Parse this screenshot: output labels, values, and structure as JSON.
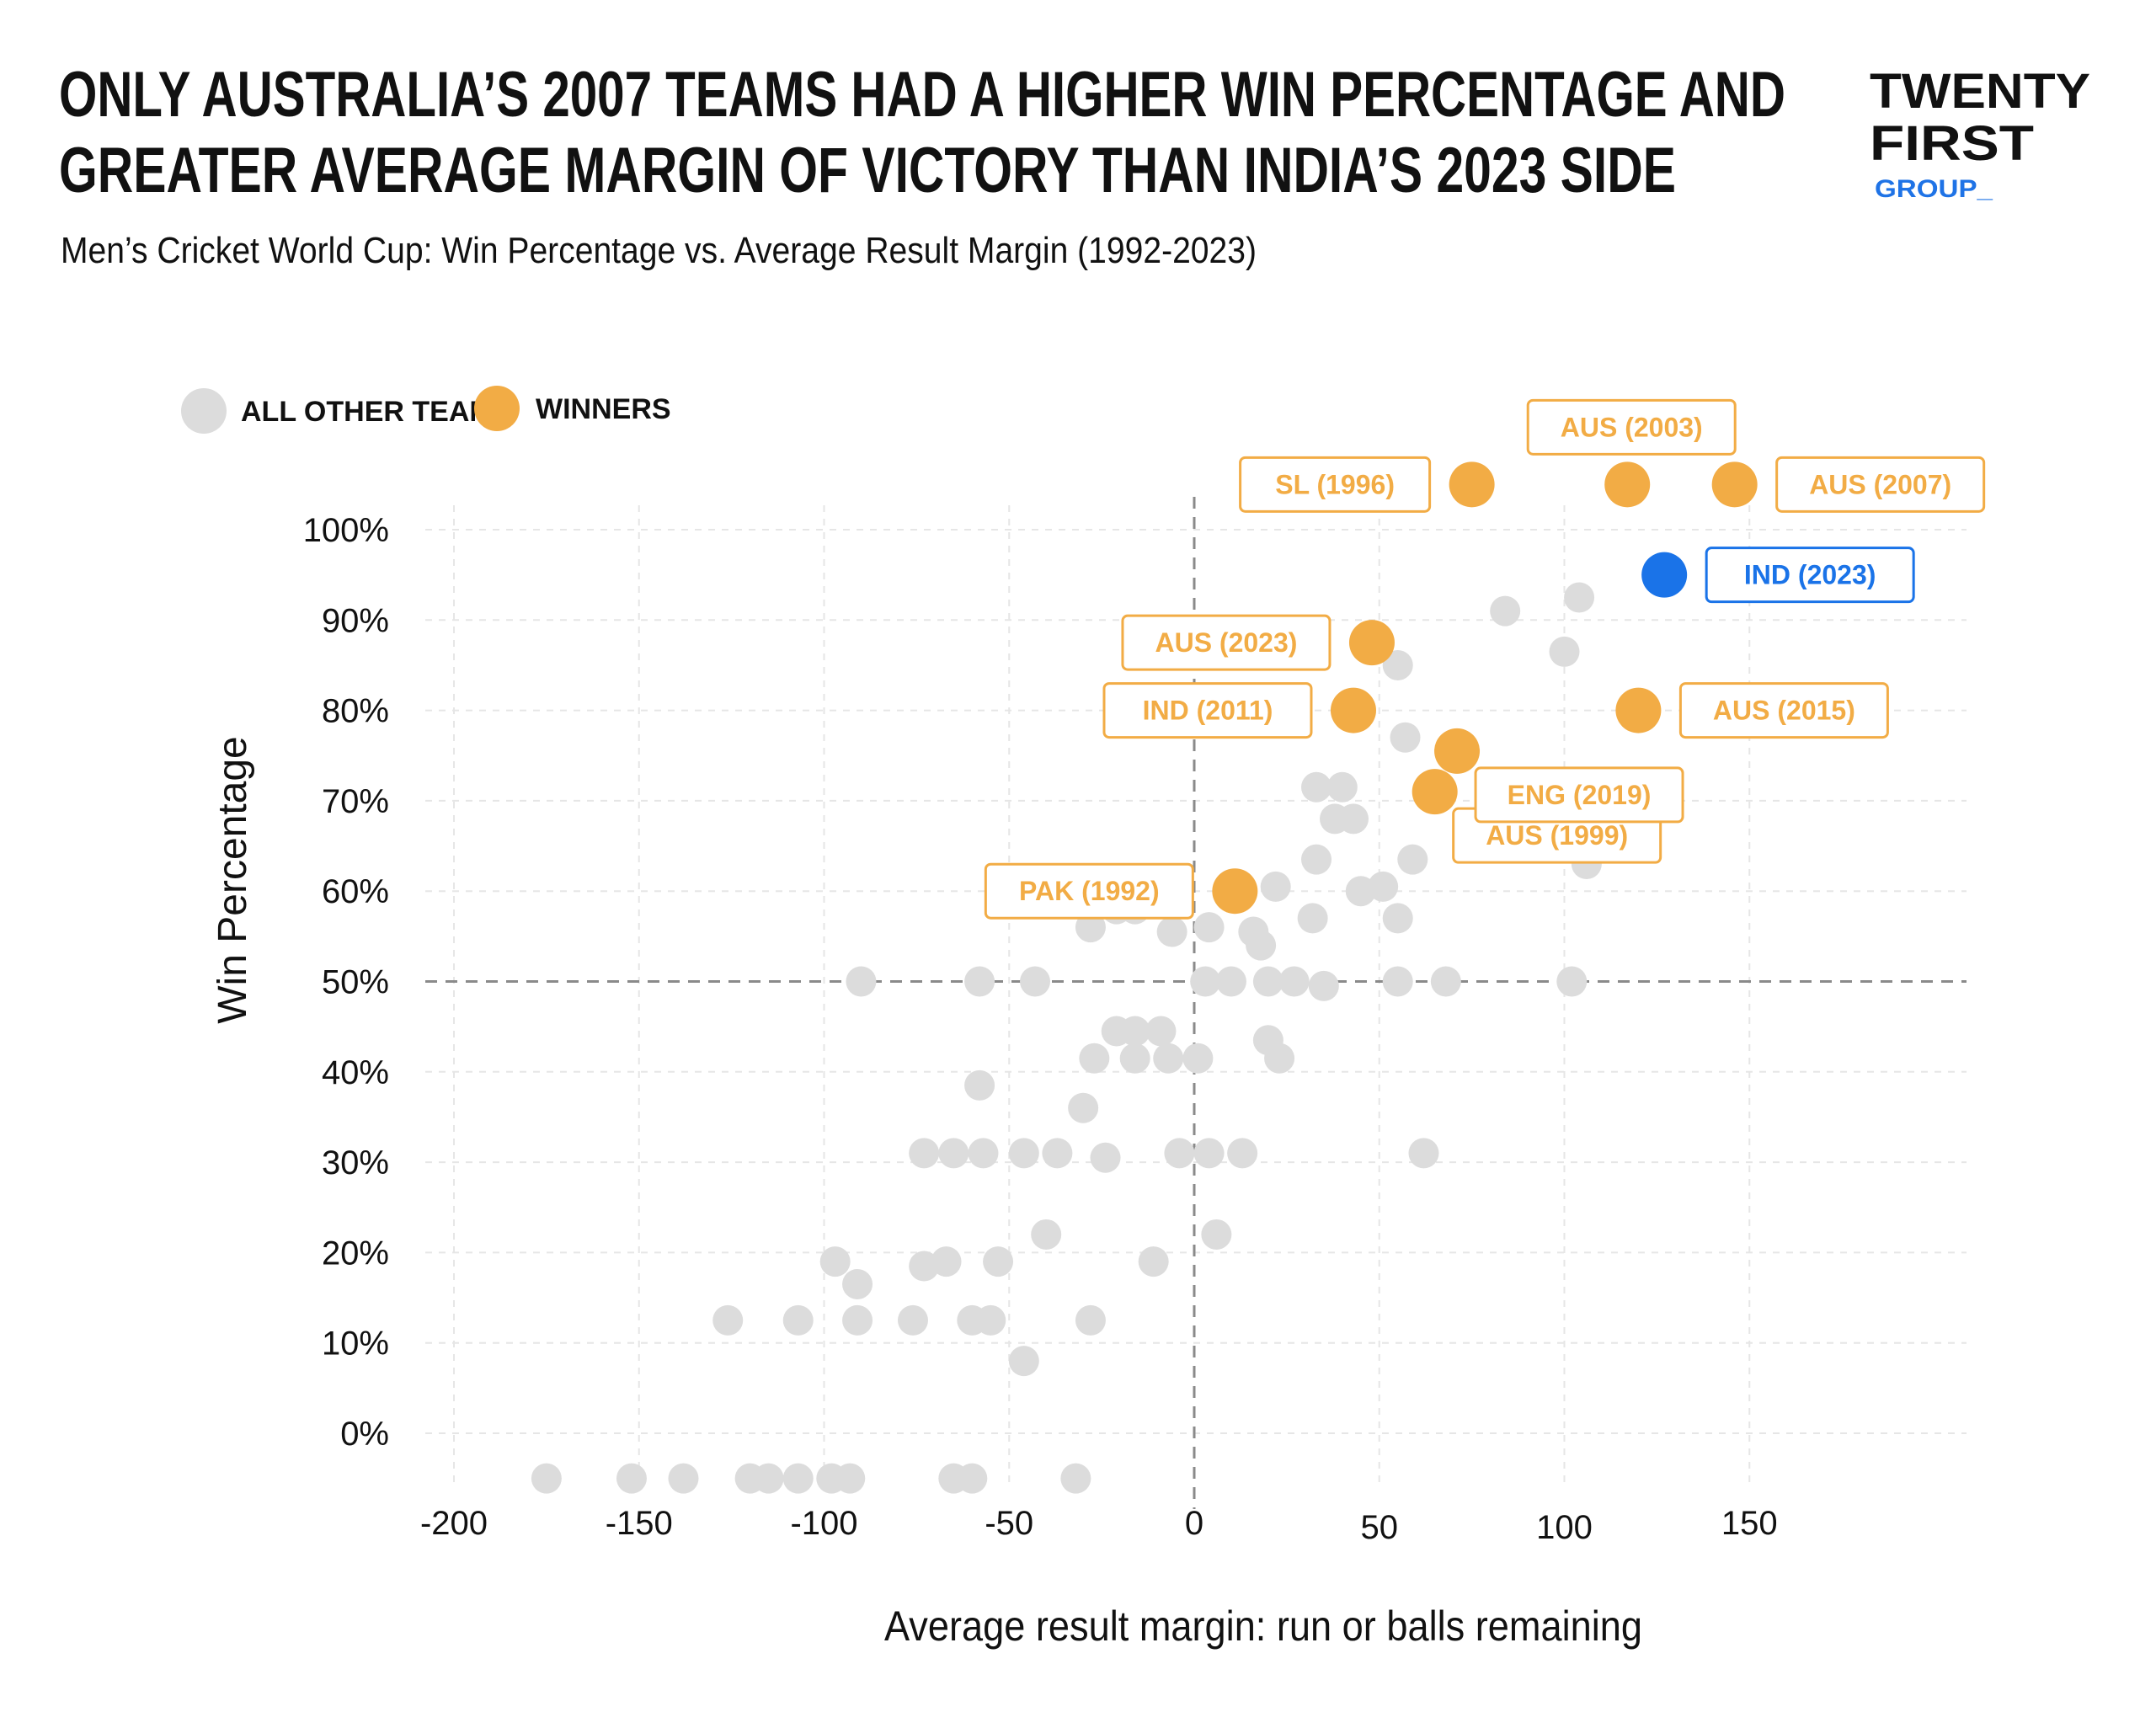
{
  "header": {
    "title_line1": "ONLY AUSTRALIA’S 2007 TEAMS HAD A HIGHER WIN PERCENTAGE AND",
    "title_line2": "GREATER AVERAGE MARGIN OF VICTORY THAN INDIA’S 2023 SIDE",
    "subtitle": "Men’s Cricket World Cup: Win Percentage vs. Average Result Margin (1992-2023)"
  },
  "logo": {
    "line1": "TWENTY",
    "line2": "FIRST",
    "line3": "GROUP_"
  },
  "colors": {
    "other": "#dcdcdc",
    "winner": "#f2ac45",
    "highlight": "#1a73e8",
    "grid": "#e6e6e6",
    "reference": "#8a8a8a"
  },
  "chart_data": {
    "type": "scatter",
    "xlabel": "Average result margin: run or balls remaining",
    "ylabel": "Win Percentage",
    "xlim": [
      -200,
      150
    ],
    "ylim": [
      0,
      100
    ],
    "x_ticks": [
      -200,
      -150,
      -100,
      -50,
      0,
      50,
      100,
      150
    ],
    "x_tick_labels": [
      "-200",
      "-150",
      "-100",
      "-50",
      "0",
      "50",
      "100",
      "150"
    ],
    "y_ticks": [
      0,
      10,
      20,
      30,
      40,
      50,
      60,
      70,
      80,
      90,
      100
    ],
    "y_tick_labels": [
      "0%",
      "10%",
      "20%",
      "30%",
      "40%",
      "50%",
      "60%",
      "70%",
      "80%",
      "90%",
      "100%"
    ],
    "reference_lines": {
      "x": 0,
      "y": 50
    },
    "legend": {
      "placement": "top-left",
      "items": [
        {
          "label": "ALL OTHER TEAMS",
          "color": "#dcdcdc"
        },
        {
          "label": "WINNERS",
          "color": "#f2ac45"
        }
      ]
    },
    "series": [
      {
        "name": "ALL OTHER TEAMS",
        "color": "#dcdcdc",
        "points": [
          {
            "x": -175,
            "y": -5
          },
          {
            "x": -152,
            "y": -5
          },
          {
            "x": -138,
            "y": -5
          },
          {
            "x": -120,
            "y": -5
          },
          {
            "x": -115,
            "y": -5
          },
          {
            "x": -107,
            "y": -5
          },
          {
            "x": -98,
            "y": -5
          },
          {
            "x": -93,
            "y": -5
          },
          {
            "x": -65,
            "y": -5
          },
          {
            "x": -60,
            "y": -5
          },
          {
            "x": -32,
            "y": -5
          },
          {
            "x": -46,
            "y": 8
          },
          {
            "x": -126,
            "y": 12.5
          },
          {
            "x": -107,
            "y": 12.5
          },
          {
            "x": -91,
            "y": 12.5
          },
          {
            "x": -76,
            "y": 12.5
          },
          {
            "x": -60,
            "y": 12.5
          },
          {
            "x": -55,
            "y": 12.5
          },
          {
            "x": -28,
            "y": 12.5
          },
          {
            "x": -91,
            "y": 16.5
          },
          {
            "x": -97,
            "y": 19
          },
          {
            "x": -73,
            "y": 18.5
          },
          {
            "x": -67,
            "y": 19
          },
          {
            "x": -53,
            "y": 19
          },
          {
            "x": -11,
            "y": 19
          },
          {
            "x": -40,
            "y": 22
          },
          {
            "x": 6,
            "y": 22
          },
          {
            "x": -73,
            "y": 31
          },
          {
            "x": -65,
            "y": 31
          },
          {
            "x": -57,
            "y": 31
          },
          {
            "x": -46,
            "y": 31
          },
          {
            "x": -37,
            "y": 31
          },
          {
            "x": -24,
            "y": 30.5
          },
          {
            "x": -4,
            "y": 31
          },
          {
            "x": 4,
            "y": 31
          },
          {
            "x": 13,
            "y": 31
          },
          {
            "x": 62,
            "y": 31
          },
          {
            "x": -30,
            "y": 36
          },
          {
            "x": -58,
            "y": 38.5
          },
          {
            "x": -27,
            "y": 41.5
          },
          {
            "x": -16,
            "y": 41.5
          },
          {
            "x": -7,
            "y": 41.5
          },
          {
            "x": 1,
            "y": 41.5
          },
          {
            "x": 23,
            "y": 41.5
          },
          {
            "x": -21,
            "y": 44.5
          },
          {
            "x": -16,
            "y": 44.5
          },
          {
            "x": -9,
            "y": 44.5
          },
          {
            "x": 20,
            "y": 43.5
          },
          {
            "x": -90,
            "y": 50
          },
          {
            "x": -58,
            "y": 50
          },
          {
            "x": -43,
            "y": 50
          },
          {
            "x": 3,
            "y": 50
          },
          {
            "x": 10,
            "y": 50
          },
          {
            "x": 20,
            "y": 50
          },
          {
            "x": 27,
            "y": 50
          },
          {
            "x": 35,
            "y": 49.5
          },
          {
            "x": 55,
            "y": 50
          },
          {
            "x": 68,
            "y": 50
          },
          {
            "x": 102,
            "y": 50
          },
          {
            "x": -28,
            "y": 56
          },
          {
            "x": -6,
            "y": 55.5
          },
          {
            "x": 4,
            "y": 56
          },
          {
            "x": 16,
            "y": 55.5
          },
          {
            "x": 18,
            "y": 54
          },
          {
            "x": 32,
            "y": 57
          },
          {
            "x": 55,
            "y": 57
          },
          {
            "x": -21,
            "y": 58
          },
          {
            "x": -16,
            "y": 58
          },
          {
            "x": 22,
            "y": 60.5
          },
          {
            "x": 45,
            "y": 60
          },
          {
            "x": 51,
            "y": 60.5
          },
          {
            "x": 33,
            "y": 63.5
          },
          {
            "x": 59,
            "y": 63.5
          },
          {
            "x": 106,
            "y": 63
          },
          {
            "x": 38,
            "y": 68
          },
          {
            "x": 43,
            "y": 68
          },
          {
            "x": 107,
            "y": 68
          },
          {
            "x": 33,
            "y": 71.5
          },
          {
            "x": 40,
            "y": 71.5
          },
          {
            "x": 57,
            "y": 77
          },
          {
            "x": 55,
            "y": 85
          },
          {
            "x": 100,
            "y": 86.5
          },
          {
            "x": 84,
            "y": 91
          },
          {
            "x": 104,
            "y": 92.5
          }
        ]
      },
      {
        "name": "WINNERS",
        "color": "#f2ac45",
        "points": [
          {
            "x": 11,
            "y": 60,
            "label": "PAK (1992)",
            "label_side": "left"
          },
          {
            "x": 75,
            "y": 105,
            "label": "SL (1996)",
            "label_side": "left"
          },
          {
            "x": 65,
            "y": 71,
            "label": "AUS (1999)",
            "label_side": "below-right"
          },
          {
            "x": 117,
            "y": 105,
            "label": "AUS (2003)",
            "label_side": "above"
          },
          {
            "x": 146,
            "y": 105,
            "label": "AUS (2007)",
            "label_side": "right"
          },
          {
            "x": 43,
            "y": 80,
            "label": "IND (2011)",
            "label_side": "left"
          },
          {
            "x": 120,
            "y": 80,
            "label": "AUS (2015)",
            "label_side": "right"
          },
          {
            "x": 71,
            "y": 75.5,
            "label": "ENG (2019)",
            "label_side": "below-right"
          },
          {
            "x": 48,
            "y": 87.5,
            "label": "AUS (2023)",
            "label_side": "left"
          }
        ]
      },
      {
        "name": "IND (2023)",
        "color": "#1a73e8",
        "points": [
          {
            "x": 127,
            "y": 95,
            "label": "IND (2023)",
            "label_side": "right"
          }
        ]
      }
    ]
  }
}
